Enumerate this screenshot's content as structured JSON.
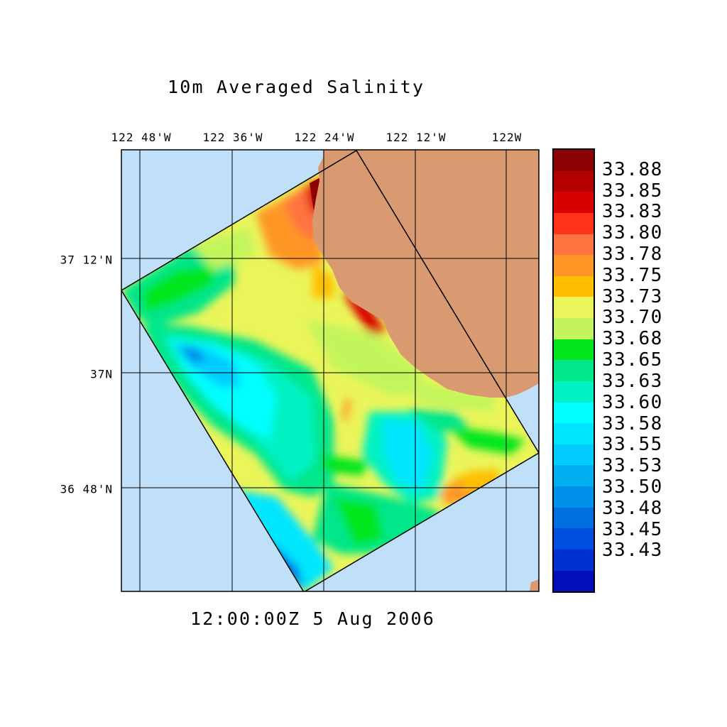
{
  "map": {
    "title": "10m Averaged Salinity",
    "timestamp": "12:00:00Z   5 Aug 2006",
    "lon_ticks": [
      "122 48'W",
      "122 36'W",
      "122 24'W",
      "122 12'W",
      "122W"
    ],
    "lat_ticks": [
      "37 12'N",
      "37N",
      "36 48'N"
    ],
    "colors": {
      "ocean_outside_domain": "#c0e0fa",
      "land": "#d99a72",
      "gridline": "#000000"
    }
  },
  "colorbar": {
    "swatches": [
      "#8b0000",
      "#b30000",
      "#d90000",
      "#ff3319",
      "#ff7340",
      "#ff9626",
      "#ffbf00",
      "#eaf55a",
      "#c2f55c",
      "#00e61a",
      "#00e68a",
      "#00f2c2",
      "#00ffff",
      "#00e6ff",
      "#00ccff",
      "#00b0f0",
      "#0091ea",
      "#0070e0",
      "#0050e0",
      "#0030d0",
      "#000fb8"
    ],
    "labels": [
      "33.88",
      "33.85",
      "33.83",
      "33.80",
      "33.78",
      "33.75",
      "33.73",
      "33.70",
      "33.68",
      "33.65",
      "33.63",
      "33.60",
      "33.58",
      "33.55",
      "33.53",
      "33.50",
      "33.48",
      "33.45",
      "33.43"
    ]
  }
}
